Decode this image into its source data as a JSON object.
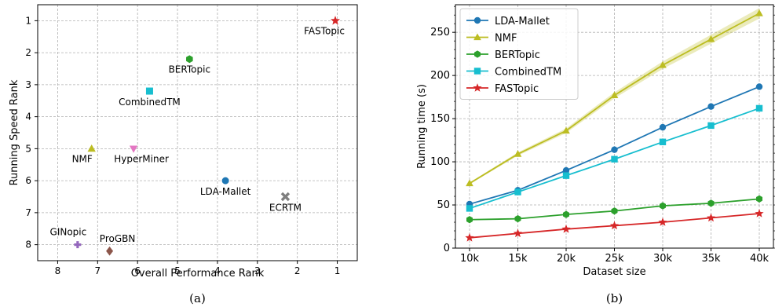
{
  "chart_data": [
    {
      "type": "scatter",
      "caption": "(a)",
      "xlabel": "Overall Performance Rank",
      "ylabel": "Running Speed Rank",
      "xlim": [
        8.5,
        0.5
      ],
      "ylim": [
        8.5,
        0.5
      ],
      "x_inverted": true,
      "y_inverted": true,
      "xticks": [
        8,
        7,
        6,
        5,
        4,
        3,
        2,
        1
      ],
      "yticks": [
        1,
        2,
        3,
        4,
        5,
        6,
        7,
        8
      ],
      "grid": true,
      "points": [
        {
          "name": "FASTopic",
          "x": 1.05,
          "y": 1.0,
          "color": "#d62728",
          "marker": "star"
        },
        {
          "name": "BERTopic",
          "x": 4.7,
          "y": 2.2,
          "color": "#2ca02c",
          "marker": "hexagon"
        },
        {
          "name": "CombinedTM",
          "x": 5.7,
          "y": 3.2,
          "color": "#17becf",
          "marker": "square"
        },
        {
          "name": "NMF",
          "x": 7.15,
          "y": 5.0,
          "color": "#bcbd22",
          "marker": "triangle-up"
        },
        {
          "name": "HyperMiner",
          "x": 6.1,
          "y": 5.0,
          "color": "#e377c2",
          "marker": "triangle-down"
        },
        {
          "name": "LDA-Mallet",
          "x": 3.8,
          "y": 6.0,
          "color": "#1f77b4",
          "marker": "circle"
        },
        {
          "name": "ECRTM",
          "x": 2.3,
          "y": 6.5,
          "color": "#7f7f7f",
          "marker": "x"
        },
        {
          "name": "GINopic",
          "x": 7.5,
          "y": 8.0,
          "color": "#9467bd",
          "marker": "plus"
        },
        {
          "name": "ProGBN",
          "x": 6.7,
          "y": 8.2,
          "color": "#8c564b",
          "marker": "diamond"
        }
      ]
    },
    {
      "type": "line",
      "caption": "(b)",
      "xlabel": "Dataset size",
      "ylabel": "Running time (s)",
      "categories": [
        "10k",
        "15k",
        "20k",
        "25k",
        "30k",
        "35k",
        "40k"
      ],
      "ylim": [
        0,
        282
      ],
      "yticks": [
        0,
        50,
        100,
        150,
        200,
        250
      ],
      "grid": true,
      "legend": "top-left",
      "series": [
        {
          "name": "LDA-Mallet",
          "color": "#1f77b4",
          "marker": "circle",
          "values": [
            51,
            67,
            90,
            114,
            140,
            164,
            187
          ]
        },
        {
          "name": "NMF",
          "color": "#bcbd22",
          "marker": "triangle-up",
          "values": [
            75,
            109,
            136,
            177,
            212,
            242,
            272
          ]
        },
        {
          "name": "BERTopic",
          "color": "#2ca02c",
          "marker": "hexagon",
          "values": [
            33,
            34,
            39,
            43,
            49,
            52,
            57
          ]
        },
        {
          "name": "CombinedTM",
          "color": "#17becf",
          "marker": "square",
          "values": [
            46,
            65,
            84,
            103,
            123,
            142,
            162
          ]
        },
        {
          "name": "FASTopic",
          "color": "#d62728",
          "marker": "star",
          "values": [
            12,
            17,
            22,
            26,
            30,
            35,
            40
          ]
        }
      ]
    }
  ]
}
